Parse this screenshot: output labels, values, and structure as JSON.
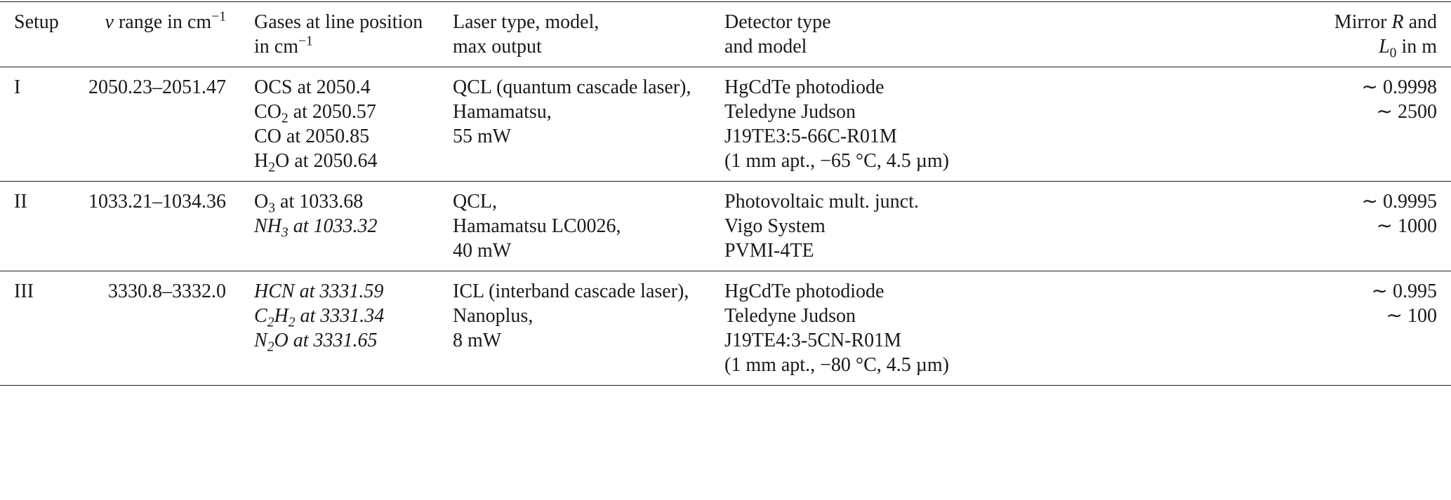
{
  "table": {
    "header": [
      [
        [
          "Setup"
        ]
      ],
      [
        [
          {
            "text": "ν",
            "italic": true
          },
          " range in cm",
          {
            "text": "−1",
            "sup": true
          }
        ]
      ],
      [
        [
          "Gases at line position"
        ],
        [
          "in cm",
          {
            "text": "−1",
            "sup": true
          }
        ]
      ],
      [
        [
          "Laser type, model,"
        ],
        [
          "max output"
        ]
      ],
      [
        [
          "Detector type"
        ],
        [
          "and model"
        ]
      ],
      [
        [
          "Mirror ",
          {
            "text": "R",
            "italic": true
          },
          " and"
        ],
        [
          {
            "text": "L",
            "italic": true
          },
          {
            "text": "0",
            "sub": true
          },
          " in m"
        ]
      ]
    ],
    "rows": [
      [
        [
          [
            "I"
          ]
        ],
        [
          [
            "2050.23–2051.47"
          ]
        ],
        [
          [
            "OCS at 2050.4"
          ],
          [
            "CO",
            {
              "text": "2",
              "sub": true
            },
            " at 2050.57"
          ],
          [
            "CO at 2050.85"
          ],
          [
            "H",
            {
              "text": "2",
              "sub": true
            },
            "O at 2050.64"
          ]
        ],
        [
          [
            "QCL (quantum cascade laser),"
          ],
          [
            "Hamamatsu,"
          ],
          [
            "55 mW"
          ]
        ],
        [
          [
            "HgCdTe photodiode"
          ],
          [
            "Teledyne Judson"
          ],
          [
            "J19TE3:5-66C-R01M"
          ],
          [
            "(1 mm apt., −65 °C, 4.5 µm)"
          ]
        ],
        [
          [
            "∼ 0.9998"
          ],
          [
            "∼ 2500"
          ]
        ]
      ],
      [
        [
          [
            "II"
          ]
        ],
        [
          [
            "1033.21–1034.36"
          ]
        ],
        [
          [
            "O",
            {
              "text": "3",
              "sub": true
            },
            " at 1033.68"
          ],
          [
            {
              "text": "NH",
              "italic": true
            },
            {
              "text": "3",
              "sub": true,
              "italic": true
            },
            {
              "text": " at 1033.32",
              "italic": true
            }
          ]
        ],
        [
          [
            "QCL,"
          ],
          [
            "Hamamatsu LC0026,"
          ],
          [
            "40 mW"
          ]
        ],
        [
          [
            "Photovoltaic mult. junct."
          ],
          [
            "Vigo System"
          ],
          [
            "PVMI-4TE"
          ]
        ],
        [
          [
            "∼ 0.9995"
          ],
          [
            "∼ 1000"
          ]
        ]
      ],
      [
        [
          [
            "III"
          ]
        ],
        [
          [
            "3330.8–3332.0"
          ]
        ],
        [
          [
            {
              "text": "HCN at 3331.59",
              "italic": true
            }
          ],
          [
            {
              "text": "C",
              "italic": true
            },
            {
              "text": "2",
              "sub": true,
              "italic": true
            },
            {
              "text": "H",
              "italic": true
            },
            {
              "text": "2",
              "sub": true,
              "italic": true
            },
            {
              "text": " at 3331.34",
              "italic": true
            }
          ],
          [
            {
              "text": "N",
              "italic": true
            },
            {
              "text": "2",
              "sub": true,
              "italic": true
            },
            {
              "text": "O at 3331.65",
              "italic": true
            }
          ]
        ],
        [
          [
            "ICL (interband cascade laser),"
          ],
          [
            "Nanoplus,"
          ],
          [
            "8 mW"
          ]
        ],
        [
          [
            "HgCdTe photodiode"
          ],
          [
            "Teledyne Judson"
          ],
          [
            "J19TE4:3-5CN-R01M"
          ],
          [
            "(1 mm apt., −80 °C, 4.5 µm)"
          ]
        ],
        [
          [
            "∼ 0.995"
          ],
          [
            "∼ 100"
          ]
        ]
      ]
    ]
  }
}
